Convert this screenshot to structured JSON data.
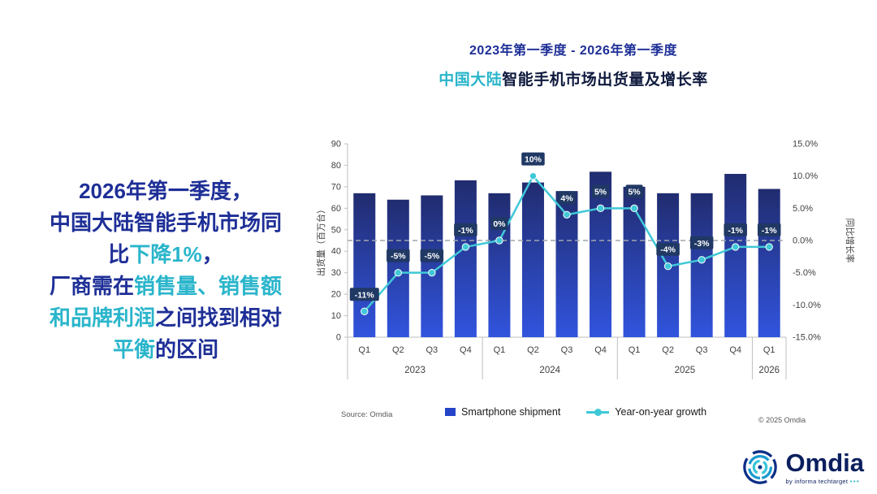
{
  "colors": {
    "navy": "#1e2f97",
    "cyan": "#2ab5cb",
    "title_dark": "#0f1a3e",
    "bar_top": "#212c6f",
    "bar_bottom": "#3154de",
    "label_box": "#203864",
    "label_text": "#ffffff",
    "line": "#3fc8d8",
    "axis_text": "#404040",
    "grid": "#bfbfbf",
    "zero_line": "#a0a6ad"
  },
  "title": {
    "line1": "2023年第一季度 - 2026年第一季度",
    "line2_highlight": "中国大陆",
    "line2_rest": "智能手机市场出货量及增长率"
  },
  "message": {
    "lines": [
      [
        {
          "t": "2026年第一季度，",
          "c": "navy"
        }
      ],
      [
        {
          "t": "中国大陆智能手机市场同",
          "c": "navy"
        }
      ],
      [
        {
          "t": "比",
          "c": "navy"
        },
        {
          "t": "下降1%",
          "c": "cyan"
        },
        {
          "t": "，",
          "c": "navy"
        }
      ],
      [
        {
          "t": "厂商需在",
          "c": "navy"
        },
        {
          "t": "销售量、销售额",
          "c": "cyan"
        }
      ],
      [
        {
          "t": "和品牌利润",
          "c": "cyan"
        },
        {
          "t": "之间找到相对",
          "c": "navy"
        }
      ],
      [
        {
          "t": "平衡",
          "c": "cyan"
        },
        {
          "t": "的区间",
          "c": "navy"
        }
      ]
    ]
  },
  "chart_data": {
    "type": "bar",
    "categories": [
      "Q1",
      "Q2",
      "Q3",
      "Q4",
      "Q1",
      "Q2",
      "Q3",
      "Q4",
      "Q1",
      "Q2",
      "Q3",
      "Q4",
      "Q1"
    ],
    "year_groups": [
      {
        "label": "2023",
        "span": 4
      },
      {
        "label": "2024",
        "span": 4
      },
      {
        "label": "2025",
        "span": 4
      },
      {
        "label": "2026",
        "span": 1
      }
    ],
    "series": [
      {
        "name": "Smartphone shipment",
        "type": "bar",
        "axis": "left",
        "values": [
          67,
          64,
          66,
          73,
          67,
          72,
          68,
          77,
          70,
          67,
          67,
          76,
          69
        ]
      },
      {
        "name": "Year-on-year growth",
        "type": "line",
        "axis": "right",
        "values": [
          -11,
          -5,
          -5,
          -1,
          0,
          10,
          4,
          5,
          5,
          -4,
          -3,
          -1,
          -1
        ]
      }
    ],
    "point_labels": [
      "-11%",
      "-5%",
      "-5%",
      "-1%",
      "0%",
      "10%",
      "4%",
      "5%",
      "5%",
      "-4%",
      "-3%",
      "-1%",
      "-1%"
    ],
    "left_axis": {
      "label": "出货量（百万台）",
      "min": 0,
      "max": 90,
      "step": 10
    },
    "right_axis": {
      "label": "同比增长率",
      "min": -15,
      "max": 15,
      "step": 5,
      "ticks": [
        "15.0%",
        "10.0%",
        "5.0%",
        "0.0%",
        "-5.0%",
        "-10.0%",
        "-15.0%"
      ]
    },
    "zero_line": true,
    "legend_position": "bottom"
  },
  "legend": [
    {
      "label": "Smartphone shipment",
      "swatch": "bar"
    },
    {
      "label": "Year-on-year growth",
      "swatch": "line"
    }
  ],
  "source": "Source: Omdia",
  "copyright": "© 2025 Omdia",
  "logo": {
    "name": "Omdia",
    "sub": "by informa techtarget",
    "dots": "•••"
  }
}
